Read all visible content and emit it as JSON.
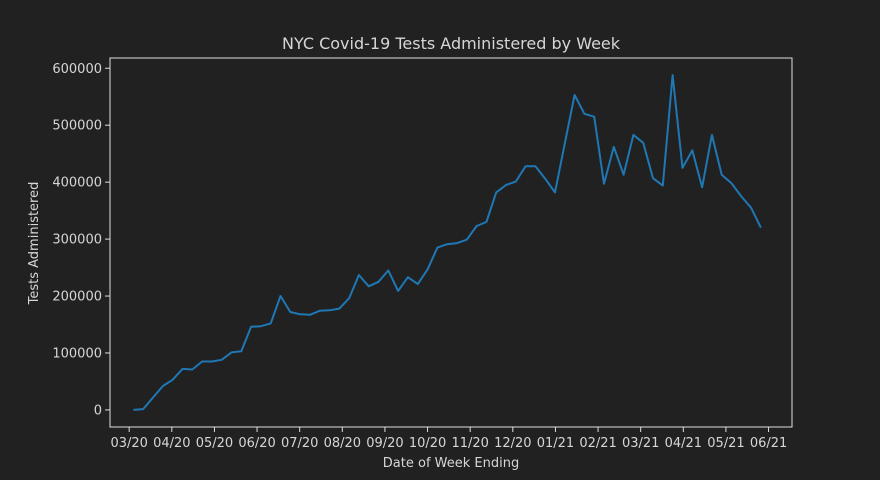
{
  "chart_data": {
    "type": "line",
    "title": "NYC Covid-19 Tests Administered by Week",
    "xlabel": "Date of Week Ending",
    "ylabel": "Tests Administered",
    "x_tick_labels": [
      "03/20",
      "04/20",
      "05/20",
      "06/20",
      "07/20",
      "08/20",
      "09/20",
      "10/20",
      "11/20",
      "12/20",
      "01/21",
      "02/21",
      "03/21",
      "04/21",
      "05/21",
      "06/21"
    ],
    "y_ticks": [
      0,
      100000,
      200000,
      300000,
      400000,
      500000,
      600000
    ],
    "y_tick_labels": [
      "0",
      "100000",
      "200000",
      "300000",
      "400000",
      "500000",
      "600000"
    ],
    "ylim": [
      -30000,
      618000
    ],
    "xlim_months": [
      -0.45,
      15.55
    ],
    "grid": false,
    "series_color": "#1f77b4",
    "series": [
      {
        "x": [
          0.1,
          0.33,
          0.56,
          0.79,
          1.02,
          1.25,
          1.48,
          1.71,
          1.94,
          2.17,
          2.4,
          2.63,
          2.86,
          3.09,
          3.32,
          3.55,
          3.78,
          4.01,
          4.24,
          4.47,
          4.7,
          4.93,
          5.16,
          5.39,
          5.62,
          5.85,
          6.08,
          6.31,
          6.54,
          6.77,
          7.0,
          7.23,
          7.46,
          7.69,
          7.92,
          8.15,
          8.38,
          8.61,
          8.84,
          9.07,
          9.3,
          9.53,
          9.76,
          9.99,
          10.22,
          10.45,
          10.68,
          10.91,
          11.14,
          11.37,
          11.6,
          11.83,
          12.06,
          12.29,
          12.52,
          12.75,
          12.98,
          13.21,
          13.44,
          13.67,
          13.9,
          14.13,
          14.36,
          14.59,
          14.82
        ],
        "y": [
          0,
          1500,
          22000,
          42000,
          53000,
          72000,
          71000,
          85000,
          85000,
          88000,
          101000,
          103000,
          146000,
          147000,
          152000,
          200000,
          172000,
          168000,
          167000,
          174000,
          175000,
          178000,
          196000,
          237000,
          217000,
          225000,
          245000,
          209000,
          233000,
          221000,
          247000,
          285000,
          291000,
          293000,
          299000,
          323000,
          330000,
          382000,
          395000,
          401000,
          428000,
          428000,
          406000,
          382000,
          468000,
          553000,
          520000,
          515000,
          397000,
          462000,
          413000,
          483000,
          469000,
          407000,
          394000,
          588000,
          425000,
          456000,
          391000,
          483000,
          413000,
          398000,
          375000,
          355000,
          320000
        ]
      }
    ]
  }
}
